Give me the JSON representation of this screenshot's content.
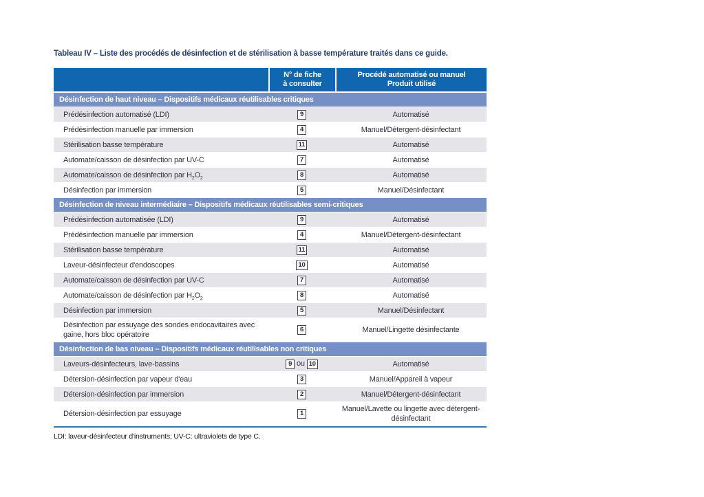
{
  "page": {
    "title": "Tableau IV – Liste des procédés de désinfection et de stérilisation à basse température traités dans ce guide.",
    "footnote": "LDI: laveur-désinfecteur d'instruments; UV-C: ultraviolets de type C."
  },
  "colors": {
    "header_bg": "#1167af",
    "section_band_bg": "#7690c5",
    "row_alt_bg": "#e5e5e9",
    "title_color": "#243a68",
    "bottom_rule_color": "#2e75b5"
  },
  "table": {
    "header": {
      "col2_line1": "N° de fiche",
      "col2_line2": "à consulter",
      "col3_line1": "Procédé automatisé ou manuel",
      "col3_line2": "Produit utilisé"
    },
    "sections": [
      {
        "band": "Désinfection de haut niveau – Dispositifs médicaux réutilisables critiques",
        "rows": [
          {
            "label": [
              {
                "t": "Prédésinfection automatisé (LDI)"
              }
            ],
            "fiche": [
              {
                "box": "9"
              }
            ],
            "mode": "Automatisé"
          },
          {
            "label": [
              {
                "t": "Prédésinfection manuelle par immersion"
              }
            ],
            "fiche": [
              {
                "box": "4"
              }
            ],
            "mode": "Manuel/Détergent-désinfectant"
          },
          {
            "label": [
              {
                "t": "Stérilisation basse température"
              }
            ],
            "fiche": [
              {
                "box": "11"
              }
            ],
            "mode": "Automatisé"
          },
          {
            "label": [
              {
                "t": "Automate/caisson de désinfection par UV-C"
              }
            ],
            "fiche": [
              {
                "box": "7"
              }
            ],
            "mode": "Automatisé"
          },
          {
            "label": [
              {
                "t": "Automate/caisson de désinfection par H"
              },
              {
                "s": "2"
              },
              {
                "t": "O"
              },
              {
                "s": "2"
              }
            ],
            "fiche": [
              {
                "box": "8"
              }
            ],
            "mode": "Automatisé"
          },
          {
            "label": [
              {
                "t": "Désinfection par immersion"
              }
            ],
            "fiche": [
              {
                "box": "5"
              }
            ],
            "mode": "Manuel/Désinfectant"
          }
        ]
      },
      {
        "band": "Désinfection de niveau intermédiaire – Dispositifs médicaux réutilisables semi-critiques",
        "rows": [
          {
            "label": [
              {
                "t": "Prédésinfection automatisée (LDI)"
              }
            ],
            "fiche": [
              {
                "box": "9"
              }
            ],
            "mode": "Automatisé"
          },
          {
            "label": [
              {
                "t": "Prédésinfection manuelle par immersion"
              }
            ],
            "fiche": [
              {
                "box": "4"
              }
            ],
            "mode": "Manuel/Détergent-désinfectant"
          },
          {
            "label": [
              {
                "t": "Stérilisation basse température"
              }
            ],
            "fiche": [
              {
                "box": "11"
              }
            ],
            "mode": "Automatisé"
          },
          {
            "label": [
              {
                "t": "Laveur-désinfecteur d'endoscopes"
              }
            ],
            "fiche": [
              {
                "box": "10"
              }
            ],
            "mode": "Automatisé"
          },
          {
            "label": [
              {
                "t": "Automate/caisson de désinfection par UV-C"
              }
            ],
            "fiche": [
              {
                "box": "7"
              }
            ],
            "mode": "Automatisé"
          },
          {
            "label": [
              {
                "t": "Automate/caisson de désinfection par H"
              },
              {
                "s": "2"
              },
              {
                "t": "O"
              },
              {
                "s": "2"
              }
            ],
            "fiche": [
              {
                "box": "8"
              }
            ],
            "mode": "Automatisé"
          },
          {
            "label": [
              {
                "t": "Désinfection par immersion"
              }
            ],
            "fiche": [
              {
                "box": "5"
              }
            ],
            "mode": "Manuel/Désinfectant"
          },
          {
            "label": [
              {
                "t": "Désinfection par essuyage des sondes endocavitaires avec gaine, hors bloc opératoire"
              }
            ],
            "tall": true,
            "fiche": [
              {
                "box": "6"
              }
            ],
            "mode": "Manuel/Lingette désinfectante"
          }
        ]
      },
      {
        "band": "Désinfection de bas niveau – Dispositifs médicaux réutilisables non critiques",
        "rows": [
          {
            "label": [
              {
                "t": "Laveurs-désinfecteurs, lave-bassins"
              }
            ],
            "fiche": [
              {
                "box": "9"
              },
              {
                "t": " ou "
              },
              {
                "box": "10"
              }
            ],
            "mode": "Automatisé"
          },
          {
            "label": [
              {
                "t": "Détersion-désinfection par vapeur d'eau"
              }
            ],
            "fiche": [
              {
                "box": "3"
              }
            ],
            "mode": "Manuel/Appareil à vapeur"
          },
          {
            "label": [
              {
                "t": "Détersion-désinfection par immersion"
              }
            ],
            "fiche": [
              {
                "box": "2"
              }
            ],
            "mode": "Manuel/Détergent-désinfectant"
          },
          {
            "label": [
              {
                "t": "Détersion-désinfection par essuyage"
              }
            ],
            "tall": true,
            "fiche": [
              {
                "box": "1"
              }
            ],
            "mode": "Manuel/Lavette ou lingette avec détergent-désinfectant"
          }
        ]
      }
    ]
  }
}
